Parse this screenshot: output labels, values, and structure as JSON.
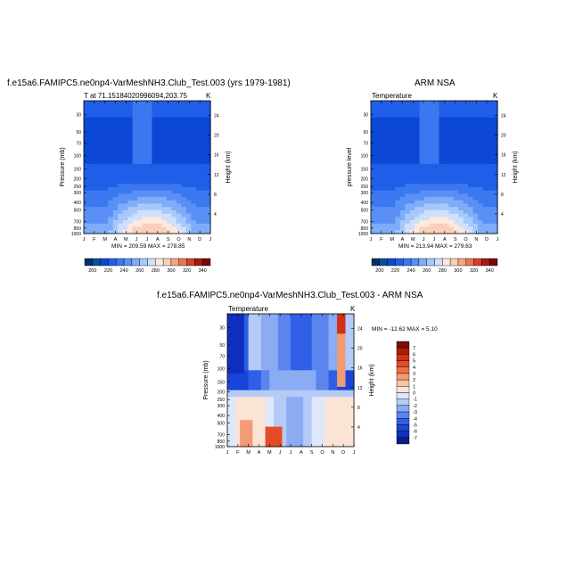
{
  "colors": {
    "temp_scale": [
      "#08306b",
      "#08519c",
      "#0d47d6",
      "#1f5fe8",
      "#3b78f0",
      "#5a90f5",
      "#7fadf8",
      "#a8c8fb",
      "#cfe0fc",
      "#fde9de",
      "#fbd0bb",
      "#f4a583",
      "#e8764f",
      "#d04426",
      "#a8190f",
      "#730b0b"
    ],
    "diff_scale": [
      "#0a1c8a",
      "#102fbf",
      "#1a45d8",
      "#2f5fe6",
      "#5a85ee",
      "#8bacf3",
      "#b5cbf7",
      "#dfe8fb",
      "#fbe4d6",
      "#f7c3a6",
      "#f29b75",
      "#ec7047",
      "#e44c27",
      "#d33014",
      "#b01a0a",
      "#7a0c0c"
    ]
  },
  "panels": {
    "model": {
      "title": "f.e15a6.FAMIPC5.ne0np4-VarMeshNH3.Club_Test.003 (yrs 1979-1981)",
      "subtitle": "T at 71.15184020996094,203.75",
      "units": "K",
      "ylabel_left": "Pressure (mb)",
      "ylabel_right": "Height (km)",
      "minmax": "MIN = 209.59  MAX = 278.85"
    },
    "obs": {
      "title": "ARM NSA",
      "subtitle": "Temperature",
      "units": "K",
      "ylabel_left": "pressure level",
      "ylabel_right": "Height (km)",
      "minmax": "MIN = 213.94  MAX = 279.63"
    },
    "diff": {
      "title": "f.e15a6.FAMIPC5.ne0np4-VarMeshNH3.Club_Test.003 - ARM NSA",
      "subtitle": "Temperature",
      "units": "K",
      "ylabel_left": "Pressure (mb)",
      "ylabel_right": "Height (km)",
      "minmax": "MIN = -12.62  MAX =    5.10"
    }
  },
  "chart_data": [
    {
      "type": "heatmap",
      "title": "f.e15a6.FAMIPC5.ne0np4-VarMeshNH3.Club_Test.003 (yrs 1979-1981)",
      "subtitle": "T at 71.15184020996094,203.75",
      "x_ticks": [
        "J",
        "F",
        "M",
        "A",
        "M",
        "J",
        "J",
        "A",
        "S",
        "O",
        "N",
        "D",
        "J"
      ],
      "y_ticks_pressure": [
        "30",
        "50",
        "70",
        "100",
        "150",
        "200",
        "250",
        "300",
        "400",
        "500",
        "700",
        "850",
        "1000"
      ],
      "y_ticks_height": [
        "24",
        "20",
        "16",
        "12",
        "8",
        "4"
      ],
      "ylabel": "Pressure (mb)",
      "ylabel_right": "Height (km)",
      "units": "K",
      "colorbar_labels": [
        "200",
        "220",
        "240",
        "260",
        "280",
        "300",
        "320",
        "340"
      ],
      "min": 209.59,
      "max": 278.85
    },
    {
      "type": "heatmap",
      "title": "ARM NSA",
      "subtitle": "Temperature",
      "x_ticks": [
        "J",
        "F",
        "M",
        "A",
        "M",
        "J",
        "J",
        "A",
        "S",
        "O",
        "N",
        "D",
        "J"
      ],
      "y_ticks_pressure": [
        "30",
        "50",
        "70",
        "100",
        "150",
        "200",
        "250",
        "300",
        "400",
        "500",
        "700",
        "850",
        "1000"
      ],
      "y_ticks_height": [
        "24",
        "20",
        "16",
        "12",
        "8",
        "4"
      ],
      "ylabel": "pressure level",
      "ylabel_right": "Height (km)",
      "units": "K",
      "colorbar_labels": [
        "200",
        "220",
        "240",
        "260",
        "280",
        "300",
        "320",
        "340"
      ],
      "min": 213.94,
      "max": 279.63
    },
    {
      "type": "heatmap",
      "title": "f.e15a6.FAMIPC5.ne0np4-VarMeshNH3.Club_Test.003 - ARM NSA",
      "subtitle": "Temperature",
      "x_ticks": [
        "J",
        "F",
        "M",
        "A",
        "M",
        "J",
        "J",
        "A",
        "S",
        "O",
        "N",
        "D",
        "J"
      ],
      "y_ticks_pressure": [
        "30",
        "50",
        "70",
        "100",
        "150",
        "200",
        "250",
        "300",
        "400",
        "500",
        "700",
        "850",
        "1000"
      ],
      "y_ticks_height": [
        "24",
        "20",
        "16",
        "12",
        "8",
        "4"
      ],
      "ylabel": "Pressure (mb)",
      "ylabel_right": "Height (km)",
      "units": "K",
      "colorbar_labels": [
        "7",
        "6",
        "5",
        "4",
        "3",
        "2",
        "1",
        "0",
        "-1",
        "-2",
        "-3",
        "-4",
        "-5",
        "-6",
        "-7"
      ],
      "min": -12.62,
      "max": 5.1
    }
  ]
}
